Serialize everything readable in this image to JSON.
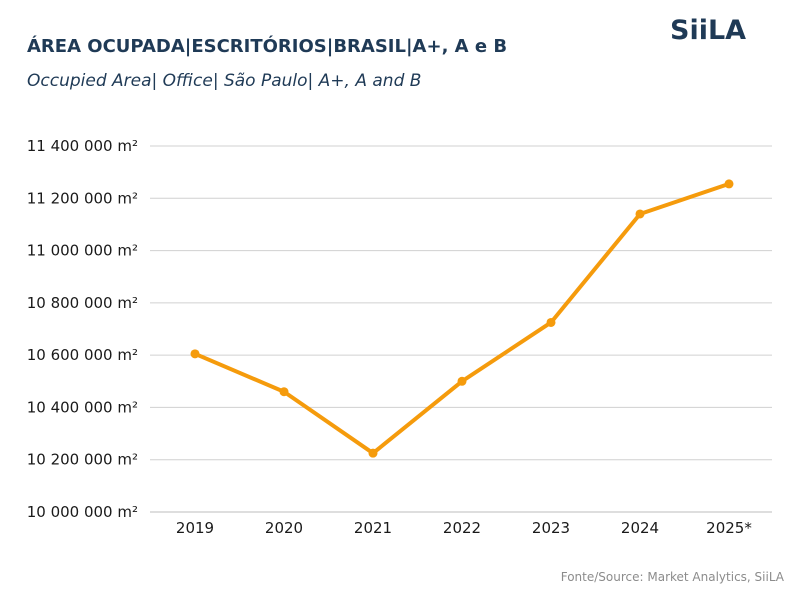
{
  "header": {
    "title": "ÁREA OCUPADA|ESCRITÓRIOS|BRASIL|A+, A e B",
    "subtitle": "Occupied Area| Office| São Paulo| A+, A and B",
    "logo_text": "SiiLA"
  },
  "footer": {
    "source": "Fonte/Source: Market Analytics, SiiLA"
  },
  "colors": {
    "line": "#f59b0c",
    "grid": "#d0d0d0",
    "title": "#1f3a56"
  },
  "chart_data": {
    "type": "line",
    "title": "ÁREA OCUPADA|ESCRITÓRIOS|BRASIL|A+, A e B",
    "subtitle": "Occupied Area| Office| São Paulo| A+, A and B",
    "xlabel": "",
    "ylabel": "",
    "unit": "m²",
    "categories": [
      "2019",
      "2020",
      "2021",
      "2022",
      "2023",
      "2024",
      "2025*"
    ],
    "series": [
      {
        "values": [
          10605000,
          10460000,
          10225000,
          10500000,
          10725000,
          11140000,
          11255000
        ]
      }
    ],
    "ylim": [
      10000000,
      11400000
    ],
    "yticks": [
      10000000,
      10200000,
      10400000,
      10600000,
      10800000,
      11000000,
      11200000,
      11400000
    ],
    "ytick_labels": [
      "10 000 000 m²",
      "10 200 000 m²",
      "10 400 000 m²",
      "10 600 000 m²",
      "10 800 000 m²",
      "11 000 000 m²",
      "11 200 000 m²",
      "11 400 000 m²"
    ],
    "grid": true,
    "legend": "none"
  }
}
